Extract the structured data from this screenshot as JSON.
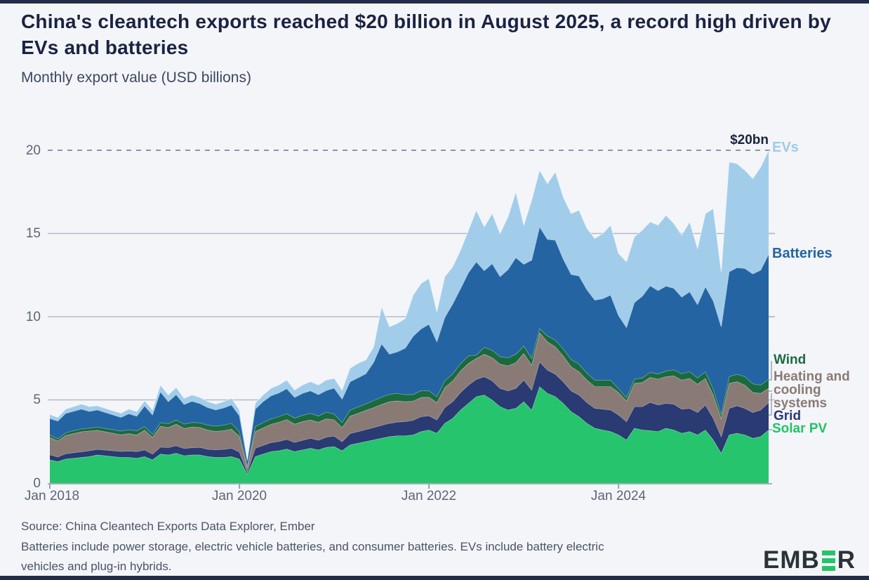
{
  "page": {
    "title": "China's cleantech exports reached $20 billion in August 2025, a record high driven by EVs and batteries",
    "subtitle": "Monthly export value (USD billions)"
  },
  "annotation": {
    "record_label": "$20bn"
  },
  "footer": {
    "source": "Source: China Cleantech Exports Data Explorer, Ember",
    "note_line1": "Batteries include power storage, electric vehicle batteries, and consumer batteries. EVs include battery electric",
    "note_line2": "vehicles and plug-in hybrids.",
    "logo_pre": "EMB",
    "logo_post": "R",
    "logo_green": "#26c469"
  },
  "chart_data": {
    "type": "area",
    "stacked": true,
    "title": "China's cleantech exports, monthly export value",
    "ylabel": "USD billions",
    "xlabel": "",
    "ylim": [
      0,
      20
    ],
    "x_start": "2018-01",
    "x_end": "2025-08",
    "x_interval": "monthly",
    "grid": true,
    "grid_solid": [
      5,
      10,
      15
    ],
    "grid_dashed": 20,
    "yticks": [
      "0",
      "5",
      "10",
      "15",
      "20"
    ],
    "xticks": [
      "Jan 2018",
      "Jan 2020",
      "Jan 2022",
      "Jan 2024"
    ],
    "xtick_month_indices": [
      0,
      24,
      48,
      72
    ],
    "legend_position": "right-edge direct labels",
    "record_annotation": {
      "text": "$20bn",
      "value": 20,
      "month": "2025-08"
    },
    "series": [
      {
        "name": "solar-pv",
        "label": "Solar PV",
        "color": "#25c46d",
        "values": [
          1.4,
          1.3,
          1.45,
          1.5,
          1.55,
          1.6,
          1.7,
          1.65,
          1.6,
          1.55,
          1.55,
          1.5,
          1.6,
          1.4,
          1.75,
          1.7,
          1.8,
          1.65,
          1.7,
          1.7,
          1.6,
          1.55,
          1.55,
          1.6,
          1.45,
          0.55,
          1.6,
          1.75,
          1.9,
          1.95,
          2.05,
          1.9,
          2.0,
          2.1,
          2.0,
          2.15,
          2.2,
          1.95,
          2.3,
          2.4,
          2.5,
          2.6,
          2.7,
          2.8,
          2.85,
          2.85,
          2.9,
          3.1,
          3.2,
          3.0,
          3.6,
          3.9,
          4.4,
          4.8,
          5.2,
          5.3,
          5.0,
          4.6,
          4.4,
          4.5,
          4.9,
          4.4,
          5.8,
          5.4,
          5.2,
          4.8,
          4.3,
          4.0,
          3.6,
          3.3,
          3.2,
          3.1,
          2.9,
          2.6,
          3.3,
          3.2,
          3.16,
          3.1,
          3.3,
          3.2,
          3.0,
          3.1,
          2.9,
          3.2,
          2.6,
          1.8,
          2.9,
          3.0,
          2.9,
          2.7,
          2.8,
          3.2
        ]
      },
      {
        "name": "grid",
        "label": "Grid",
        "color": "#2a3a72",
        "values": [
          0.3,
          0.28,
          0.32,
          0.33,
          0.34,
          0.35,
          0.33,
          0.34,
          0.35,
          0.36,
          0.38,
          0.4,
          0.4,
          0.35,
          0.42,
          0.44,
          0.45,
          0.44,
          0.43,
          0.45,
          0.44,
          0.46,
          0.48,
          0.5,
          0.42,
          0.12,
          0.5,
          0.52,
          0.54,
          0.56,
          0.58,
          0.55,
          0.58,
          0.6,
          0.58,
          0.62,
          0.63,
          0.55,
          0.68,
          0.7,
          0.72,
          0.75,
          0.78,
          0.8,
          0.82,
          0.85,
          0.88,
          0.9,
          0.85,
          0.8,
          0.95,
          1.0,
          1.05,
          1.1,
          1.04,
          1.1,
          1.15,
          1.1,
          1.15,
          1.2,
          1.3,
          1.2,
          1.5,
          1.4,
          1.35,
          1.3,
          1.25,
          1.3,
          1.25,
          1.2,
          1.25,
          1.3,
          1.2,
          1.1,
          1.3,
          1.4,
          1.7,
          1.6,
          1.5,
          1.55,
          1.45,
          1.4,
          1.35,
          1.5,
          1.3,
          1.0,
          1.6,
          1.65,
          1.6,
          1.55,
          1.6,
          1.65
        ]
      },
      {
        "name": "heating-cooling",
        "label": "Heating and cooling systems",
        "color": "#8a7a76",
        "values": [
          1.05,
          0.95,
          1.1,
          1.15,
          1.2,
          1.18,
          1.15,
          1.1,
          1.05,
          1.0,
          1.05,
          1.0,
          1.2,
          1.0,
          1.25,
          1.2,
          1.3,
          1.2,
          1.25,
          1.2,
          1.15,
          1.1,
          1.12,
          1.15,
          0.95,
          0.25,
          1.0,
          1.05,
          1.1,
          1.15,
          1.2,
          1.1,
          1.12,
          1.1,
          1.08,
          1.1,
          0.98,
          0.85,
          1.05,
          1.1,
          1.15,
          1.2,
          1.25,
          1.3,
          1.28,
          1.2,
          1.15,
          1.15,
          1.12,
          1.05,
          1.2,
          1.25,
          1.3,
          1.3,
          1.26,
          1.35,
          1.4,
          1.45,
          1.5,
          1.55,
          1.6,
          1.5,
          1.75,
          1.7,
          1.65,
          1.55,
          1.45,
          1.4,
          1.35,
          1.3,
          1.35,
          1.4,
          1.35,
          1.25,
          1.4,
          1.45,
          1.5,
          1.55,
          1.6,
          1.7,
          1.75,
          1.8,
          1.7,
          1.6,
          1.4,
          1.1,
          1.5,
          1.45,
          1.4,
          1.2,
          1.0,
          0.85
        ]
      },
      {
        "name": "wind",
        "label": "Wind",
        "color": "#1a6a3e",
        "values": [
          0.15,
          0.13,
          0.16,
          0.17,
          0.18,
          0.18,
          0.2,
          0.2,
          0.22,
          0.22,
          0.24,
          0.25,
          0.2,
          0.18,
          0.22,
          0.24,
          0.25,
          0.26,
          0.27,
          0.28,
          0.3,
          0.32,
          0.34,
          0.35,
          0.28,
          0.08,
          0.3,
          0.32,
          0.33,
          0.34,
          0.35,
          0.36,
          0.38,
          0.4,
          0.38,
          0.4,
          0.35,
          0.3,
          0.36,
          0.38,
          0.4,
          0.42,
          0.44,
          0.45,
          0.44,
          0.42,
          0.4,
          0.42,
          0.38,
          0.35,
          0.4,
          0.42,
          0.44,
          0.45,
          0.2,
          0.42,
          0.44,
          0.46,
          0.48,
          0.5,
          0.45,
          0.4,
          0.25,
          0.35,
          0.4,
          0.42,
          0.44,
          0.45,
          0.42,
          0.4,
          0.38,
          0.4,
          0.22,
          0.2,
          0.25,
          0.28,
          0.3,
          0.32,
          0.34,
          0.36,
          0.38,
          0.4,
          0.38,
          0.4,
          0.35,
          0.25,
          0.4,
          0.45,
          0.5,
          0.52,
          0.5,
          0.55
        ]
      },
      {
        "name": "batteries",
        "label": "Batteries",
        "color": "#2464a3",
        "values": [
          0.98,
          1.07,
          1.16,
          1.17,
          1.18,
          1.0,
          1.02,
          0.96,
          0.88,
          0.82,
          0.95,
          0.87,
          1.24,
          1.17,
          1.85,
          1.32,
          1.52,
          1.18,
          1.27,
          1.15,
          1.05,
          0.97,
          1.03,
          1.1,
          0.95,
          0.35,
          1.05,
          1.26,
          1.38,
          1.42,
          1.5,
          1.24,
          1.32,
          1.35,
          1.28,
          1.3,
          1.55,
          1.4,
          1.7,
          1.75,
          1.8,
          2.3,
          3.2,
          2.4,
          2.5,
          2.8,
          3.5,
          3.7,
          4.0,
          3.3,
          3.8,
          4.2,
          4.5,
          5.0,
          5.6,
          4.6,
          5.2,
          4.8,
          5.3,
          5.8,
          4.9,
          5.9,
          6.1,
          5.8,
          6.0,
          5.4,
          5.1,
          5.3,
          5.0,
          4.8,
          4.9,
          5.1,
          4.4,
          4.2,
          4.6,
          4.9,
          5.2,
          5.0,
          5.1,
          4.9,
          4.6,
          4.8,
          4.4,
          5.1,
          5.3,
          5.25,
          6.3,
          6.4,
          6.5,
          6.6,
          6.9,
          7.5
        ]
      },
      {
        "name": "evs",
        "label": "EVs",
        "color": "#a2cdea",
        "values": [
          0.25,
          0.22,
          0.26,
          0.28,
          0.3,
          0.29,
          0.25,
          0.25,
          0.25,
          0.25,
          0.28,
          0.28,
          0.31,
          0.3,
          0.41,
          0.4,
          0.43,
          0.37,
          0.38,
          0.37,
          0.36,
          0.35,
          0.38,
          0.4,
          0.35,
          0.1,
          0.35,
          0.4,
          0.45,
          0.48,
          0.52,
          0.45,
          0.5,
          0.55,
          0.58,
          0.63,
          0.59,
          0.55,
          0.81,
          0.87,
          0.83,
          0.93,
          2.23,
          1.65,
          1.71,
          1.78,
          2.47,
          2.73,
          2.75,
          1.8,
          2.45,
          2.23,
          2.31,
          2.55,
          3.1,
          2.63,
          3.01,
          2.59,
          3.17,
          3.95,
          2.35,
          3.6,
          3.4,
          3.35,
          4.1,
          3.73,
          3.66,
          3.95,
          3.68,
          3.7,
          3.92,
          4.2,
          3.73,
          3.95,
          3.95,
          3.97,
          3.84,
          3.93,
          4.26,
          3.89,
          3.72,
          4.2,
          3.37,
          4.4,
          5.55,
          3.3,
          6.6,
          6.25,
          5.9,
          5.73,
          6.2,
          6.25
        ]
      }
    ],
    "colors": {
      "background": "#f3f5f9",
      "title_text": "#1b2342",
      "axis_text": "#5d6576",
      "gridline": "#b6bbc6",
      "dashed_line": "#8e95a2",
      "edge_bar": "#252c4a"
    }
  }
}
